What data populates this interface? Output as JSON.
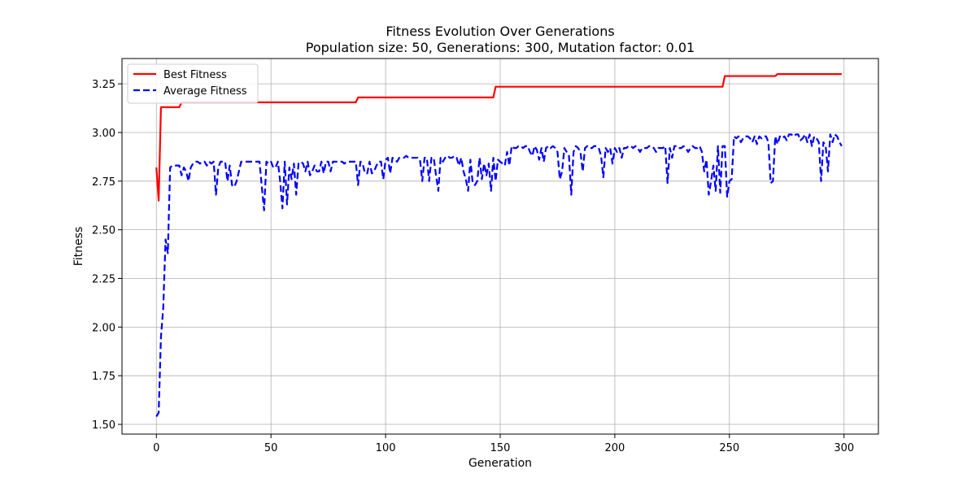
{
  "chart_data": {
    "type": "line",
    "title": "Fitness Evolution Over Generations",
    "subtitle": "Population size: 50, Generations: 300, Mutation factor: 0.01",
    "xlabel": "Generation",
    "ylabel": "Fitness",
    "xlim": [
      -15,
      315
    ],
    "ylim": [
      1.45,
      3.38
    ],
    "xticks": [
      0,
      50,
      100,
      150,
      200,
      250,
      300
    ],
    "yticks": [
      1.5,
      1.75,
      2.0,
      2.25,
      2.5,
      2.75,
      3.0,
      3.25
    ],
    "grid": true,
    "legend_position": "top-left",
    "series": [
      {
        "name": "Best Fitness",
        "color": "#ff0000",
        "style": "solid",
        "points": [
          [
            0,
            2.82
          ],
          [
            1,
            2.65
          ],
          [
            2,
            3.13
          ],
          [
            10,
            3.13
          ],
          [
            11,
            3.155
          ],
          [
            87,
            3.155
          ],
          [
            88,
            3.18
          ],
          [
            147,
            3.18
          ],
          [
            148,
            3.235
          ],
          [
            247,
            3.235
          ],
          [
            248,
            3.29
          ],
          [
            270,
            3.29
          ],
          [
            271,
            3.3
          ],
          [
            299,
            3.3
          ]
        ]
      },
      {
        "name": "Average Fitness",
        "color": "#0000ff",
        "style": "dashed",
        "points": [
          [
            0,
            1.54
          ],
          [
            1,
            1.56
          ],
          [
            2,
            1.95
          ],
          [
            3,
            2.1
          ],
          [
            4,
            2.45
          ],
          [
            5,
            2.38
          ],
          [
            6,
            2.82
          ],
          [
            7,
            2.83
          ],
          [
            8,
            2.83
          ],
          [
            9,
            2.83
          ],
          [
            10,
            2.83
          ],
          [
            11,
            2.78
          ],
          [
            12,
            2.82
          ],
          [
            13,
            2.8
          ],
          [
            14,
            2.75
          ],
          [
            15,
            2.82
          ],
          [
            16,
            2.84
          ],
          [
            17,
            2.85
          ],
          [
            18,
            2.85
          ],
          [
            19,
            2.84
          ],
          [
            20,
            2.85
          ],
          [
            21,
            2.85
          ],
          [
            22,
            2.83
          ],
          [
            23,
            2.85
          ],
          [
            24,
            2.84
          ],
          [
            25,
            2.85
          ],
          [
            26,
            2.68
          ],
          [
            27,
            2.82
          ],
          [
            28,
            2.85
          ],
          [
            29,
            2.85
          ],
          [
            30,
            2.85
          ],
          [
            31,
            2.75
          ],
          [
            32,
            2.83
          ],
          [
            33,
            2.73
          ],
          [
            34,
            2.72
          ],
          [
            35,
            2.75
          ],
          [
            36,
            2.8
          ],
          [
            37,
            2.85
          ],
          [
            38,
            2.85
          ],
          [
            39,
            2.85
          ],
          [
            40,
            2.85
          ],
          [
            41,
            2.85
          ],
          [
            42,
            2.85
          ],
          [
            43,
            2.85
          ],
          [
            44,
            2.85
          ],
          [
            45,
            2.85
          ],
          [
            46,
            2.72
          ],
          [
            47,
            2.6
          ],
          [
            48,
            2.85
          ],
          [
            49,
            2.84
          ],
          [
            50,
            2.85
          ],
          [
            51,
            2.82
          ],
          [
            52,
            2.82
          ],
          [
            53,
            2.85
          ],
          [
            54,
            2.75
          ],
          [
            55,
            2.61
          ],
          [
            56,
            2.85
          ],
          [
            57,
            2.63
          ],
          [
            58,
            2.82
          ],
          [
            59,
            2.76
          ],
          [
            60,
            2.84
          ],
          [
            61,
            2.68
          ],
          [
            62,
            2.84
          ],
          [
            63,
            2.85
          ],
          [
            64,
            2.84
          ],
          [
            65,
            2.8
          ],
          [
            66,
            2.85
          ],
          [
            67,
            2.78
          ],
          [
            68,
            2.8
          ],
          [
            69,
            2.83
          ],
          [
            70,
            2.8
          ],
          [
            71,
            2.8
          ],
          [
            72,
            2.85
          ],
          [
            73,
            2.79
          ],
          [
            74,
            2.85
          ],
          [
            75,
            2.85
          ],
          [
            76,
            2.8
          ],
          [
            77,
            2.85
          ],
          [
            78,
            2.85
          ],
          [
            79,
            2.85
          ],
          [
            80,
            2.85
          ],
          [
            81,
            2.85
          ],
          [
            82,
            2.84
          ],
          [
            83,
            2.85
          ],
          [
            84,
            2.85
          ],
          [
            85,
            2.85
          ],
          [
            86,
            2.85
          ],
          [
            87,
            2.85
          ],
          [
            88,
            2.73
          ],
          [
            89,
            2.85
          ],
          [
            90,
            2.84
          ],
          [
            91,
            2.79
          ],
          [
            92,
            2.79
          ],
          [
            93,
            2.85
          ],
          [
            94,
            2.79
          ],
          [
            95,
            2.8
          ],
          [
            96,
            2.83
          ],
          [
            97,
            2.85
          ],
          [
            98,
            2.85
          ],
          [
            99,
            2.76
          ],
          [
            100,
            2.86
          ],
          [
            101,
            2.87
          ],
          [
            102,
            2.79
          ],
          [
            103,
            2.87
          ],
          [
            104,
            2.86
          ],
          [
            105,
            2.85
          ],
          [
            106,
            2.87
          ],
          [
            107,
            2.87
          ],
          [
            108,
            2.87
          ],
          [
            109,
            2.88
          ],
          [
            110,
            2.87
          ],
          [
            111,
            2.87
          ],
          [
            112,
            2.87
          ],
          [
            113,
            2.87
          ],
          [
            114,
            2.87
          ],
          [
            115,
            2.86
          ],
          [
            116,
            2.75
          ],
          [
            117,
            2.87
          ],
          [
            118,
            2.87
          ],
          [
            119,
            2.75
          ],
          [
            120,
            2.87
          ],
          [
            121,
            2.87
          ],
          [
            122,
            2.78
          ],
          [
            123,
            2.7
          ],
          [
            124,
            2.87
          ],
          [
            125,
            2.85
          ],
          [
            126,
            2.87
          ],
          [
            127,
            2.88
          ],
          [
            128,
            2.87
          ],
          [
            129,
            2.87
          ],
          [
            130,
            2.88
          ],
          [
            131,
            2.87
          ],
          [
            132,
            2.83
          ],
          [
            133,
            2.87
          ],
          [
            134,
            2.8
          ],
          [
            135,
            2.76
          ],
          [
            136,
            2.7
          ],
          [
            137,
            2.86
          ],
          [
            138,
            2.74
          ],
          [
            139,
            2.73
          ],
          [
            140,
            2.75
          ],
          [
            141,
            2.87
          ],
          [
            142,
            2.76
          ],
          [
            143,
            2.84
          ],
          [
            144,
            2.78
          ],
          [
            145,
            2.84
          ],
          [
            146,
            2.7
          ],
          [
            147,
            2.87
          ],
          [
            148,
            2.75
          ],
          [
            149,
            2.86
          ],
          [
            150,
            2.85
          ],
          [
            151,
            2.84
          ],
          [
            152,
            2.83
          ],
          [
            153,
            2.9
          ],
          [
            154,
            2.83
          ],
          [
            155,
            2.93
          ],
          [
            156,
            2.92
          ],
          [
            157,
            2.92
          ],
          [
            158,
            2.93
          ],
          [
            159,
            2.93
          ],
          [
            160,
            2.92
          ],
          [
            161,
            2.93
          ],
          [
            162,
            2.93
          ],
          [
            163,
            2.9
          ],
          [
            164,
            2.88
          ],
          [
            165,
            2.93
          ],
          [
            166,
            2.91
          ],
          [
            167,
            2.86
          ],
          [
            168,
            2.92
          ],
          [
            169,
            2.85
          ],
          [
            170,
            2.92
          ],
          [
            171,
            2.93
          ],
          [
            172,
            2.92
          ],
          [
            173,
            2.93
          ],
          [
            174,
            2.92
          ],
          [
            175,
            2.9
          ],
          [
            176,
            2.76
          ],
          [
            177,
            2.8
          ],
          [
            178,
            2.92
          ],
          [
            179,
            2.9
          ],
          [
            180,
            2.88
          ],
          [
            181,
            2.68
          ],
          [
            182,
            2.9
          ],
          [
            183,
            2.93
          ],
          [
            184,
            2.92
          ],
          [
            185,
            2.9
          ],
          [
            186,
            2.8
          ],
          [
            187,
            2.92
          ],
          [
            188,
            2.93
          ],
          [
            189,
            2.92
          ],
          [
            190,
            2.92
          ],
          [
            191,
            2.93
          ],
          [
            192,
            2.93
          ],
          [
            193,
            2.92
          ],
          [
            194,
            2.88
          ],
          [
            195,
            2.77
          ],
          [
            196,
            2.92
          ],
          [
            197,
            2.9
          ],
          [
            198,
            2.92
          ],
          [
            199,
            2.84
          ],
          [
            200,
            2.92
          ],
          [
            201,
            2.9
          ],
          [
            202,
            2.92
          ],
          [
            203,
            2.87
          ],
          [
            204,
            2.92
          ],
          [
            205,
            2.92
          ],
          [
            206,
            2.93
          ],
          [
            207,
            2.93
          ],
          [
            208,
            2.92
          ],
          [
            209,
            2.93
          ],
          [
            210,
            2.92
          ],
          [
            211,
            2.9
          ],
          [
            212,
            2.92
          ],
          [
            213,
            2.92
          ],
          [
            214,
            2.92
          ],
          [
            215,
            2.93
          ],
          [
            216,
            2.93
          ],
          [
            217,
            2.92
          ],
          [
            218,
            2.9
          ],
          [
            219,
            2.92
          ],
          [
            220,
            2.92
          ],
          [
            221,
            2.92
          ],
          [
            222,
            2.93
          ],
          [
            223,
            2.74
          ],
          [
            224,
            2.92
          ],
          [
            225,
            2.87
          ],
          [
            226,
            2.93
          ],
          [
            227,
            2.93
          ],
          [
            228,
            2.92
          ],
          [
            229,
            2.92
          ],
          [
            230,
            2.93
          ],
          [
            231,
            2.92
          ],
          [
            232,
            2.9
          ],
          [
            233,
            2.92
          ],
          [
            234,
            2.93
          ],
          [
            235,
            2.92
          ],
          [
            236,
            2.92
          ],
          [
            237,
            2.93
          ],
          [
            238,
            2.9
          ],
          [
            239,
            2.8
          ],
          [
            240,
            2.86
          ],
          [
            241,
            2.68
          ],
          [
            242,
            2.75
          ],
          [
            243,
            2.83
          ],
          [
            244,
            2.7
          ],
          [
            245,
            2.93
          ],
          [
            246,
            2.69
          ],
          [
            247,
            2.93
          ],
          [
            248,
            2.93
          ],
          [
            249,
            2.67
          ],
          [
            250,
            2.75
          ],
          [
            251,
            2.76
          ],
          [
            252,
            2.98
          ],
          [
            253,
            2.97
          ],
          [
            254,
            2.98
          ],
          [
            255,
            2.95
          ],
          [
            256,
            2.97
          ],
          [
            257,
            2.98
          ],
          [
            258,
            2.98
          ],
          [
            259,
            2.97
          ],
          [
            260,
            2.95
          ],
          [
            261,
            2.98
          ],
          [
            262,
            2.94
          ],
          [
            263,
            2.98
          ],
          [
            264,
            2.97
          ],
          [
            265,
            2.98
          ],
          [
            266,
            2.98
          ],
          [
            267,
            2.95
          ],
          [
            268,
            2.74
          ],
          [
            269,
            2.75
          ],
          [
            270,
            2.98
          ],
          [
            271,
            2.94
          ],
          [
            272,
            2.98
          ],
          [
            273,
            2.97
          ],
          [
            274,
            2.98
          ],
          [
            275,
            2.96
          ],
          [
            276,
            2.99
          ],
          [
            277,
            2.99
          ],
          [
            278,
            2.98
          ],
          [
            279,
            2.99
          ],
          [
            280,
            2.99
          ],
          [
            281,
            2.96
          ],
          [
            282,
            2.97
          ],
          [
            283,
            2.99
          ],
          [
            284,
            2.95
          ],
          [
            285,
            2.99
          ],
          [
            286,
            2.93
          ],
          [
            287,
            2.98
          ],
          [
            288,
            2.97
          ],
          [
            289,
            2.95
          ],
          [
            290,
            2.75
          ],
          [
            291,
            2.95
          ],
          [
            292,
            2.93
          ],
          [
            293,
            2.8
          ],
          [
            294,
            2.99
          ],
          [
            295,
            2.95
          ],
          [
            296,
            2.99
          ],
          [
            297,
            2.98
          ],
          [
            298,
            2.95
          ],
          [
            299,
            2.93
          ]
        ]
      }
    ]
  }
}
